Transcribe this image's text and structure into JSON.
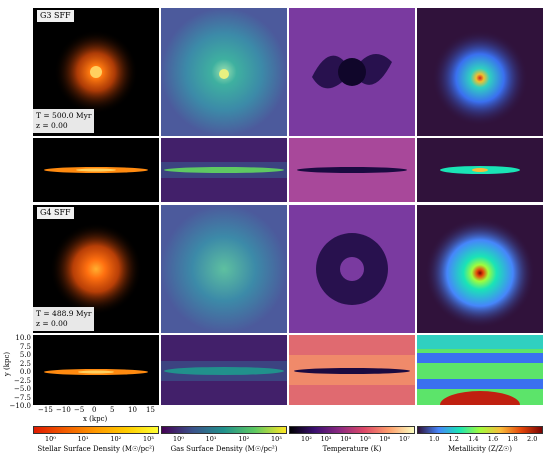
{
  "rows": [
    {
      "label": "G3 SFF",
      "time": "T = 500.0 Myr",
      "redshift": "z = 0.00"
    },
    {
      "label": "G4 SFF",
      "time": "T = 488.9 Myr",
      "redshift": "z = 0.00"
    }
  ],
  "axes": {
    "y_label": "y (kpc)",
    "x_label": "x (kpc)",
    "y_ticks": [
      "10.0",
      "7.5",
      "5.0",
      "2.5",
      "0.0",
      "−2.5",
      "−5.0",
      "−7.5",
      "−10.0"
    ],
    "x_ticks": [
      "−15",
      "−10",
      "−5",
      "0",
      "5",
      "10",
      "15"
    ]
  },
  "colorbars": [
    {
      "label": "Stellar Surface Density (M☉/pc²)",
      "ticks": [
        "10⁰",
        "10¹",
        "10²",
        "10³"
      ],
      "colors": [
        "#e01a00",
        "#f25c00",
        "#ff9900",
        "#ffcc00",
        "#ffff33"
      ]
    },
    {
      "label": "Gas Surface Density (M☉/pc²)",
      "ticks": [
        "10⁰",
        "10¹",
        "10²",
        "10³"
      ],
      "colors": [
        "#440154",
        "#3b528b",
        "#21918c",
        "#5ec962",
        "#fde725"
      ]
    },
    {
      "label": "Temperature (K)",
      "ticks": [
        "10²",
        "10³",
        "10⁴",
        "10⁵",
        "10⁶",
        "10⁷"
      ],
      "colors": [
        "#000004",
        "#3b0f70",
        "#8c2981",
        "#de4968",
        "#fe9f6d",
        "#fcfdbf"
      ]
    },
    {
      "label": "Metallicity (Z/Z☉)",
      "ticks": [
        "1.0",
        "1.2",
        "1.4",
        "1.6",
        "1.8",
        "2.0"
      ],
      "colors": [
        "#30123b",
        "#4686fb",
        "#1ae4b6",
        "#a2fc3c",
        "#fabb3a",
        "#e4460a",
        "#7a0403"
      ]
    }
  ]
}
